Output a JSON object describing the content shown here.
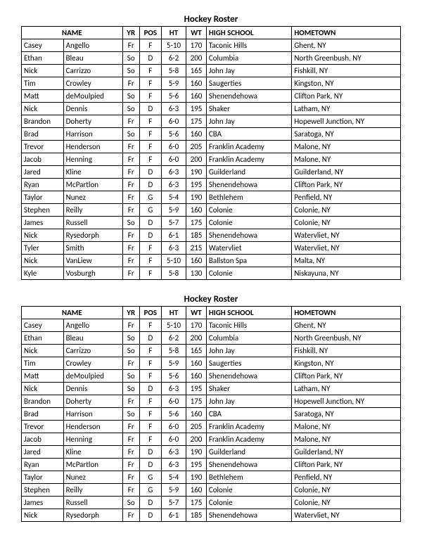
{
  "title": "Hockey Roster",
  "columns": [
    {
      "key": "first",
      "label": "",
      "class": "col-fn",
      "align": "left"
    },
    {
      "key": "last",
      "label": "",
      "class": "col-ln",
      "align": "left"
    },
    {
      "key": "yr",
      "label": "YR",
      "class": "col-yr",
      "align": "center"
    },
    {
      "key": "pos",
      "label": "POS",
      "class": "col-pos",
      "align": "center"
    },
    {
      "key": "ht",
      "label": "HT",
      "class": "col-ht",
      "align": "center"
    },
    {
      "key": "wt",
      "label": "WT",
      "class": "col-wt",
      "align": "center"
    },
    {
      "key": "hs",
      "label": "HIGH SCHOOL",
      "class": "col-hs",
      "align": "left"
    },
    {
      "key": "home",
      "label": "HOMETOWN",
      "class": "col-home",
      "align": "left"
    }
  ],
  "name_header": "NAME",
  "rows": [
    {
      "first": "Casey",
      "last": "Angello",
      "yr": "Fr",
      "pos": "F",
      "ht": "5-10",
      "wt": "170",
      "hs": "Taconic Hills",
      "home": "Ghent, NY"
    },
    {
      "first": "Ethan",
      "last": "Bleau",
      "yr": "So",
      "pos": "D",
      "ht": "6-2",
      "wt": "200",
      "hs": "Columbia",
      "home": "North Greenbush, NY"
    },
    {
      "first": "Nick",
      "last": "Carrizzo",
      "yr": "So",
      "pos": "F",
      "ht": "5-8",
      "wt": "165",
      "hs": "John Jay",
      "home": "Fishkill, NY"
    },
    {
      "first": "Tim",
      "last": "Crowley",
      "yr": "Fr",
      "pos": "F",
      "ht": "5-9",
      "wt": "160",
      "hs": "Saugerties",
      "home": "Kingston, NY"
    },
    {
      "first": "Matt",
      "last": "deMoulpied",
      "yr": "So",
      "pos": "F",
      "ht": "5-6",
      "wt": "160",
      "hs": "Shenendehowa",
      "home": "Clifton Park, NY"
    },
    {
      "first": "Nick",
      "last": "Dennis",
      "yr": "So",
      "pos": "D",
      "ht": "6-3",
      "wt": "195",
      "hs": "Shaker",
      "home": "Latham, NY"
    },
    {
      "first": "Brandon",
      "last": "Doherty",
      "yr": "Fr",
      "pos": "F",
      "ht": "6-0",
      "wt": "175",
      "hs": "John Jay",
      "home": "Hopewell Junction, NY"
    },
    {
      "first": "Brad",
      "last": "Harrison",
      "yr": "So",
      "pos": "F",
      "ht": "5-6",
      "wt": "160",
      "hs": "CBA",
      "home": "Saratoga, NY"
    },
    {
      "first": "Trevor",
      "last": "Henderson",
      "yr": "Fr",
      "pos": "F",
      "ht": "6-0",
      "wt": "205",
      "hs": "Franklin Academy",
      "home": "Malone, NY"
    },
    {
      "first": "Jacob",
      "last": "Henning",
      "yr": "Fr",
      "pos": "F",
      "ht": "6-0",
      "wt": "200",
      "hs": "Franklin Academy",
      "home": "Malone, NY"
    },
    {
      "first": "Jared",
      "last": "Kline",
      "yr": "Fr",
      "pos": "D",
      "ht": "6-3",
      "wt": "190",
      "hs": "Guilderland",
      "home": "Guilderland, NY"
    },
    {
      "first": "Ryan",
      "last": "McPartlon",
      "yr": "Fr",
      "pos": "D",
      "ht": "6-3",
      "wt": "195",
      "hs": "Shenendehowa",
      "home": "Clifton Park, NY"
    },
    {
      "first": "Taylor",
      "last": "Nunez",
      "yr": "Fr",
      "pos": "G",
      "ht": "5-4",
      "wt": "190",
      "hs": "Bethlehem",
      "home": "Penfield, NY"
    },
    {
      "first": "Stephen",
      "last": "Reilly",
      "yr": "Fr",
      "pos": "G",
      "ht": "5-9",
      "wt": "160",
      "hs": "Colonie",
      "home": "Colonie, NY"
    },
    {
      "first": "James",
      "last": "Russell",
      "yr": "So",
      "pos": "D",
      "ht": "5-7",
      "wt": "175",
      "hs": "Colonie",
      "home": "Colonie, NY"
    },
    {
      "first": "Nick",
      "last": "Rysedorph",
      "yr": "Fr",
      "pos": "D",
      "ht": "6-1",
      "wt": "185",
      "hs": "Shenendehowa",
      "home": "Watervliet, NY"
    },
    {
      "first": "Tyler",
      "last": "Smith",
      "yr": "Fr",
      "pos": "F",
      "ht": "6-3",
      "wt": "215",
      "hs": "Watervliet",
      "home": "Watervliet, NY"
    },
    {
      "first": "Nick",
      "last": "VanLiew",
      "yr": "Fr",
      "pos": "F",
      "ht": "5-10",
      "wt": "160",
      "hs": "Ballston Spa",
      "home": "Malta, NY"
    },
    {
      "first": "Kyle",
      "last": "Vosburgh",
      "yr": "Fr",
      "pos": "F",
      "ht": "5-8",
      "wt": "130",
      "hs": "Colonie",
      "home": "Niskayuna, NY"
    }
  ],
  "second_table_row_limit": 16
}
